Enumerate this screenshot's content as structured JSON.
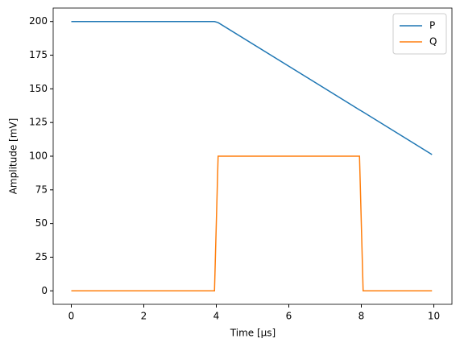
{
  "chart_data": {
    "type": "line",
    "xlabel": "Time [µs]",
    "ylabel": "Amplitude [mV]",
    "x": [
      0,
      3.95,
      4.05,
      7.95,
      8.05,
      9.95
    ],
    "series": [
      {
        "name": "P",
        "color": "#1f77b4",
        "values": [
          200,
          200,
          199.2,
          134.4,
          132.8,
          101.2
        ]
      },
      {
        "name": "Q",
        "color": "#ff7f0e",
        "values": [
          0,
          0,
          100,
          100,
          0,
          0
        ]
      }
    ],
    "xlim": [
      -0.5,
      10.5
    ],
    "xticks": [
      0,
      2,
      4,
      6,
      8,
      10
    ],
    "ylim": [
      -10,
      210
    ],
    "yticks": [
      0,
      25,
      50,
      75,
      100,
      125,
      150,
      175,
      200
    ],
    "legend": "upper right",
    "grid": false
  }
}
